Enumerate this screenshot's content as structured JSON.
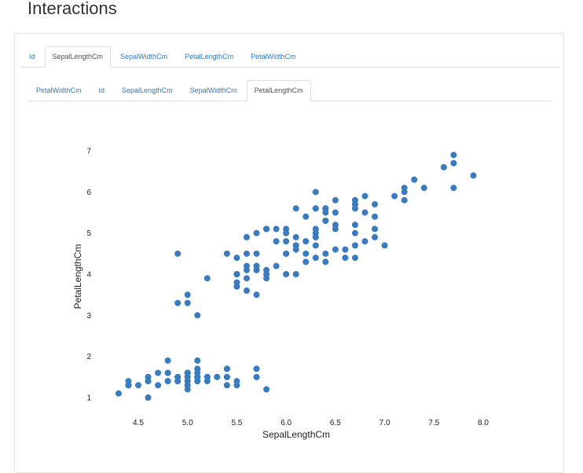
{
  "page": {
    "title": "Interactions"
  },
  "outer_tabs": [
    {
      "label": "Id",
      "active": false
    },
    {
      "label": "SepalLengthCm",
      "active": true
    },
    {
      "label": "SepalWidthCm",
      "active": false
    },
    {
      "label": "PetalLengthCm",
      "active": false
    },
    {
      "label": "PetalWidthCm",
      "active": false
    }
  ],
  "inner_tabs": [
    {
      "label": "PetalWidthCm",
      "active": false
    },
    {
      "label": "Id",
      "active": false
    },
    {
      "label": "SepalLengthCm",
      "active": false
    },
    {
      "label": "SepalWidthCm",
      "active": false
    },
    {
      "label": "PetalLengthCm",
      "active": true
    }
  ],
  "colors": {
    "point": "#3a7bbf"
  },
  "chart_data": {
    "type": "scatter",
    "xlabel": "SepalLengthCm",
    "ylabel": "PetalLengthCm",
    "xlim": [
      4.2,
      8.0
    ],
    "ylim": [
      0.8,
      7.2
    ],
    "xticks": [
      "4.5",
      "5.0",
      "5.5",
      "6.0",
      "6.5",
      "7.0",
      "7.5",
      "8.0"
    ],
    "yticks": [
      "1",
      "2",
      "3",
      "4",
      "5",
      "6",
      "7"
    ],
    "grid": false,
    "points": [
      [
        5.1,
        1.4
      ],
      [
        4.9,
        1.4
      ],
      [
        4.7,
        1.3
      ],
      [
        4.6,
        1.5
      ],
      [
        5.0,
        1.4
      ],
      [
        5.4,
        1.7
      ],
      [
        4.6,
        1.4
      ],
      [
        5.0,
        1.5
      ],
      [
        4.4,
        1.4
      ],
      [
        4.9,
        1.5
      ],
      [
        5.4,
        1.5
      ],
      [
        4.8,
        1.6
      ],
      [
        4.8,
        1.4
      ],
      [
        4.3,
        1.1
      ],
      [
        5.8,
        1.2
      ],
      [
        5.7,
        1.5
      ],
      [
        5.4,
        1.3
      ],
      [
        5.1,
        1.4
      ],
      [
        5.7,
        1.7
      ],
      [
        5.1,
        1.5
      ],
      [
        5.4,
        1.7
      ],
      [
        5.1,
        1.5
      ],
      [
        4.6,
        1.0
      ],
      [
        5.1,
        1.7
      ],
      [
        4.8,
        1.9
      ],
      [
        5.0,
        1.6
      ],
      [
        5.0,
        1.6
      ],
      [
        5.2,
        1.5
      ],
      [
        5.2,
        1.4
      ],
      [
        4.7,
        1.6
      ],
      [
        4.8,
        1.6
      ],
      [
        5.4,
        1.5
      ],
      [
        5.2,
        1.5
      ],
      [
        5.5,
        1.4
      ],
      [
        4.9,
        1.5
      ],
      [
        5.0,
        1.2
      ],
      [
        5.5,
        1.3
      ],
      [
        4.9,
        1.4
      ],
      [
        4.4,
        1.3
      ],
      [
        5.1,
        1.5
      ],
      [
        5.0,
        1.3
      ],
      [
        4.5,
        1.3
      ],
      [
        4.4,
        1.3
      ],
      [
        5.0,
        1.6
      ],
      [
        5.1,
        1.9
      ],
      [
        4.8,
        1.4
      ],
      [
        5.1,
        1.6
      ],
      [
        4.6,
        1.4
      ],
      [
        5.3,
        1.5
      ],
      [
        5.0,
        1.4
      ],
      [
        7.0,
        4.7
      ],
      [
        6.4,
        4.5
      ],
      [
        6.9,
        4.9
      ],
      [
        5.5,
        4.0
      ],
      [
        6.5,
        4.6
      ],
      [
        5.7,
        4.5
      ],
      [
        6.3,
        4.7
      ],
      [
        4.9,
        3.3
      ],
      [
        6.6,
        4.6
      ],
      [
        5.2,
        3.9
      ],
      [
        5.0,
        3.5
      ],
      [
        5.9,
        4.2
      ],
      [
        6.0,
        4.0
      ],
      [
        6.1,
        4.7
      ],
      [
        5.6,
        3.6
      ],
      [
        6.7,
        4.4
      ],
      [
        5.6,
        4.5
      ],
      [
        5.8,
        4.1
      ],
      [
        6.2,
        4.5
      ],
      [
        5.6,
        3.9
      ],
      [
        5.9,
        4.8
      ],
      [
        6.1,
        4.0
      ],
      [
        6.3,
        4.9
      ],
      [
        6.1,
        4.7
      ],
      [
        6.4,
        4.3
      ],
      [
        6.6,
        4.4
      ],
      [
        6.8,
        4.8
      ],
      [
        6.7,
        5.0
      ],
      [
        6.0,
        4.5
      ],
      [
        5.7,
        3.5
      ],
      [
        5.5,
        3.8
      ],
      [
        5.5,
        3.7
      ],
      [
        5.8,
        3.9
      ],
      [
        6.0,
        5.1
      ],
      [
        5.4,
        4.5
      ],
      [
        6.0,
        4.5
      ],
      [
        6.7,
        4.7
      ],
      [
        6.3,
        4.4
      ],
      [
        5.6,
        4.1
      ],
      [
        5.5,
        4.0
      ],
      [
        5.5,
        4.4
      ],
      [
        6.1,
        4.6
      ],
      [
        5.8,
        4.0
      ],
      [
        5.0,
        3.3
      ],
      [
        5.6,
        4.2
      ],
      [
        5.7,
        4.2
      ],
      [
        5.7,
        4.2
      ],
      [
        6.2,
        4.3
      ],
      [
        5.1,
        3.0
      ],
      [
        5.7,
        4.1
      ],
      [
        6.3,
        6.0
      ],
      [
        5.8,
        5.1
      ],
      [
        7.1,
        5.9
      ],
      [
        6.3,
        5.6
      ],
      [
        6.5,
        5.8
      ],
      [
        7.6,
        6.6
      ],
      [
        4.9,
        4.5
      ],
      [
        7.3,
        6.3
      ],
      [
        6.7,
        5.8
      ],
      [
        7.2,
        6.1
      ],
      [
        6.5,
        5.1
      ],
      [
        6.4,
        5.3
      ],
      [
        6.8,
        5.5
      ],
      [
        5.7,
        5.0
      ],
      [
        5.8,
        5.1
      ],
      [
        6.4,
        5.3
      ],
      [
        6.5,
        5.5
      ],
      [
        7.7,
        6.7
      ],
      [
        7.7,
        6.9
      ],
      [
        6.0,
        5.0
      ],
      [
        6.9,
        5.7
      ],
      [
        5.6,
        4.9
      ],
      [
        7.7,
        6.7
      ],
      [
        6.3,
        4.9
      ],
      [
        6.7,
        5.7
      ],
      [
        7.2,
        6.0
      ],
      [
        6.2,
        4.8
      ],
      [
        6.1,
        4.9
      ],
      [
        6.4,
        5.6
      ],
      [
        7.2,
        5.8
      ],
      [
        7.4,
        6.1
      ],
      [
        7.9,
        6.4
      ],
      [
        6.4,
        5.6
      ],
      [
        6.3,
        5.1
      ],
      [
        6.1,
        5.6
      ],
      [
        7.7,
        6.1
      ],
      [
        6.3,
        5.6
      ],
      [
        6.4,
        5.5
      ],
      [
        6.0,
        4.8
      ],
      [
        6.9,
        5.4
      ],
      [
        6.7,
        5.6
      ],
      [
        6.9,
        5.1
      ],
      [
        5.8,
        5.1
      ],
      [
        6.8,
        5.9
      ],
      [
        6.7,
        5.7
      ],
      [
        6.7,
        5.2
      ],
      [
        6.3,
        5.0
      ],
      [
        6.5,
        5.2
      ],
      [
        6.2,
        5.4
      ],
      [
        5.9,
        5.1
      ]
    ]
  }
}
